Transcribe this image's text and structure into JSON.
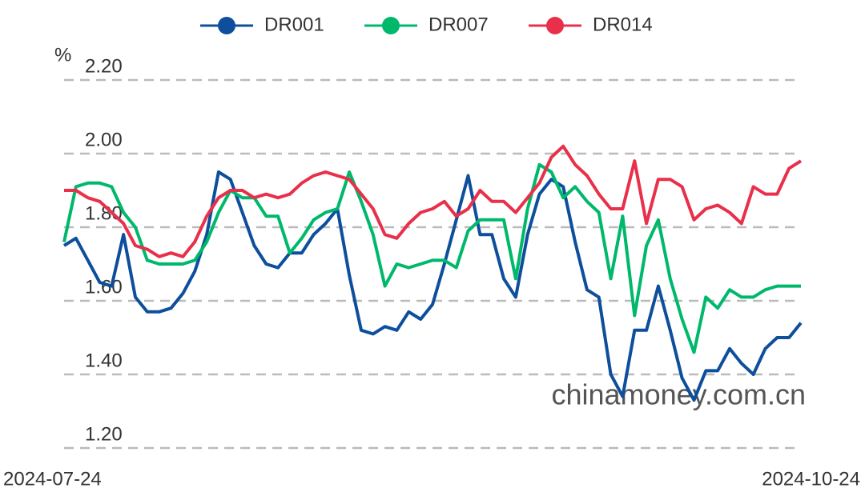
{
  "chart_data": {
    "type": "line",
    "y_label": "%",
    "watermark": "chinamoney.com.cn",
    "categories": [
      "2024-07-24",
      null,
      null,
      null,
      null,
      null,
      null,
      null,
      null,
      null,
      null,
      null,
      null,
      null,
      null,
      null,
      null,
      null,
      null,
      null,
      null,
      null,
      null,
      null,
      null,
      null,
      null,
      null,
      null,
      null,
      null,
      null,
      null,
      null,
      null,
      null,
      null,
      null,
      null,
      null,
      null,
      null,
      null,
      null,
      null,
      null,
      null,
      null,
      null,
      null,
      null,
      null,
      null,
      null,
      null,
      null,
      null,
      null,
      null,
      null,
      null,
      null,
      "2024-10-24"
    ],
    "series": [
      {
        "name": "DR001",
        "color": "#0d4f9c",
        "values": [
          1.75,
          1.77,
          1.71,
          1.65,
          1.64,
          1.78,
          1.61,
          1.57,
          1.57,
          1.58,
          1.62,
          1.68,
          1.78,
          1.95,
          1.93,
          1.84,
          1.75,
          1.7,
          1.69,
          1.73,
          1.73,
          1.78,
          1.81,
          1.85,
          1.67,
          1.52,
          1.51,
          1.53,
          1.52,
          1.57,
          1.55,
          1.59,
          1.7,
          1.82,
          1.94,
          1.78,
          1.78,
          1.66,
          1.61,
          1.78,
          1.89,
          1.93,
          1.91,
          1.76,
          1.63,
          1.61,
          1.4,
          1.34,
          1.52,
          1.52,
          1.64,
          1.52,
          1.39,
          1.33,
          1.41,
          1.41,
          1.47,
          1.43,
          1.4,
          1.47,
          1.5,
          1.5,
          1.54
        ]
      },
      {
        "name": "DR007",
        "color": "#00b86b",
        "values": [
          1.76,
          1.91,
          1.92,
          1.92,
          1.91,
          1.84,
          1.8,
          1.71,
          1.7,
          1.7,
          1.7,
          1.71,
          1.76,
          1.84,
          1.9,
          1.88,
          1.88,
          1.83,
          1.83,
          1.73,
          1.77,
          1.82,
          1.84,
          1.85,
          1.95,
          1.87,
          1.78,
          1.64,
          1.7,
          1.69,
          1.7,
          1.71,
          1.71,
          1.69,
          1.79,
          1.82,
          1.82,
          1.82,
          1.66,
          1.85,
          1.97,
          1.95,
          1.88,
          1.91,
          1.87,
          1.84,
          1.66,
          1.83,
          1.56,
          1.75,
          1.82,
          1.66,
          1.55,
          1.46,
          1.61,
          1.58,
          1.63,
          1.61,
          1.61,
          1.63,
          1.64,
          1.64,
          1.64
        ]
      },
      {
        "name": "DR014",
        "color": "#e8304a",
        "values": [
          1.9,
          1.9,
          1.88,
          1.87,
          1.84,
          1.81,
          1.75,
          1.74,
          1.72,
          1.73,
          1.72,
          1.76,
          1.83,
          1.88,
          1.9,
          1.9,
          1.88,
          1.89,
          1.88,
          1.89,
          1.92,
          1.94,
          1.95,
          1.94,
          1.93,
          1.89,
          1.85,
          1.78,
          1.77,
          1.81,
          1.84,
          1.85,
          1.87,
          1.83,
          1.85,
          1.9,
          1.87,
          1.87,
          1.84,
          1.88,
          1.92,
          1.99,
          2.02,
          1.97,
          1.94,
          1.89,
          1.85,
          1.85,
          1.98,
          1.81,
          1.93,
          1.93,
          1.91,
          1.82,
          1.85,
          1.86,
          1.84,
          1.81,
          1.91,
          1.89,
          1.89,
          1.96,
          1.98
        ]
      }
    ],
    "ylim": [
      1.2,
      2.2
    ],
    "yticks": [
      {
        "value": 1.2,
        "label": "1.20"
      },
      {
        "value": 1.4,
        "label": "1.40"
      },
      {
        "value": 1.6,
        "label": "1.60"
      },
      {
        "value": 1.8,
        "label": "1.80"
      },
      {
        "value": 2.0,
        "label": "2.00"
      },
      {
        "value": 2.2,
        "label": "2.20"
      }
    ],
    "grid": true
  }
}
